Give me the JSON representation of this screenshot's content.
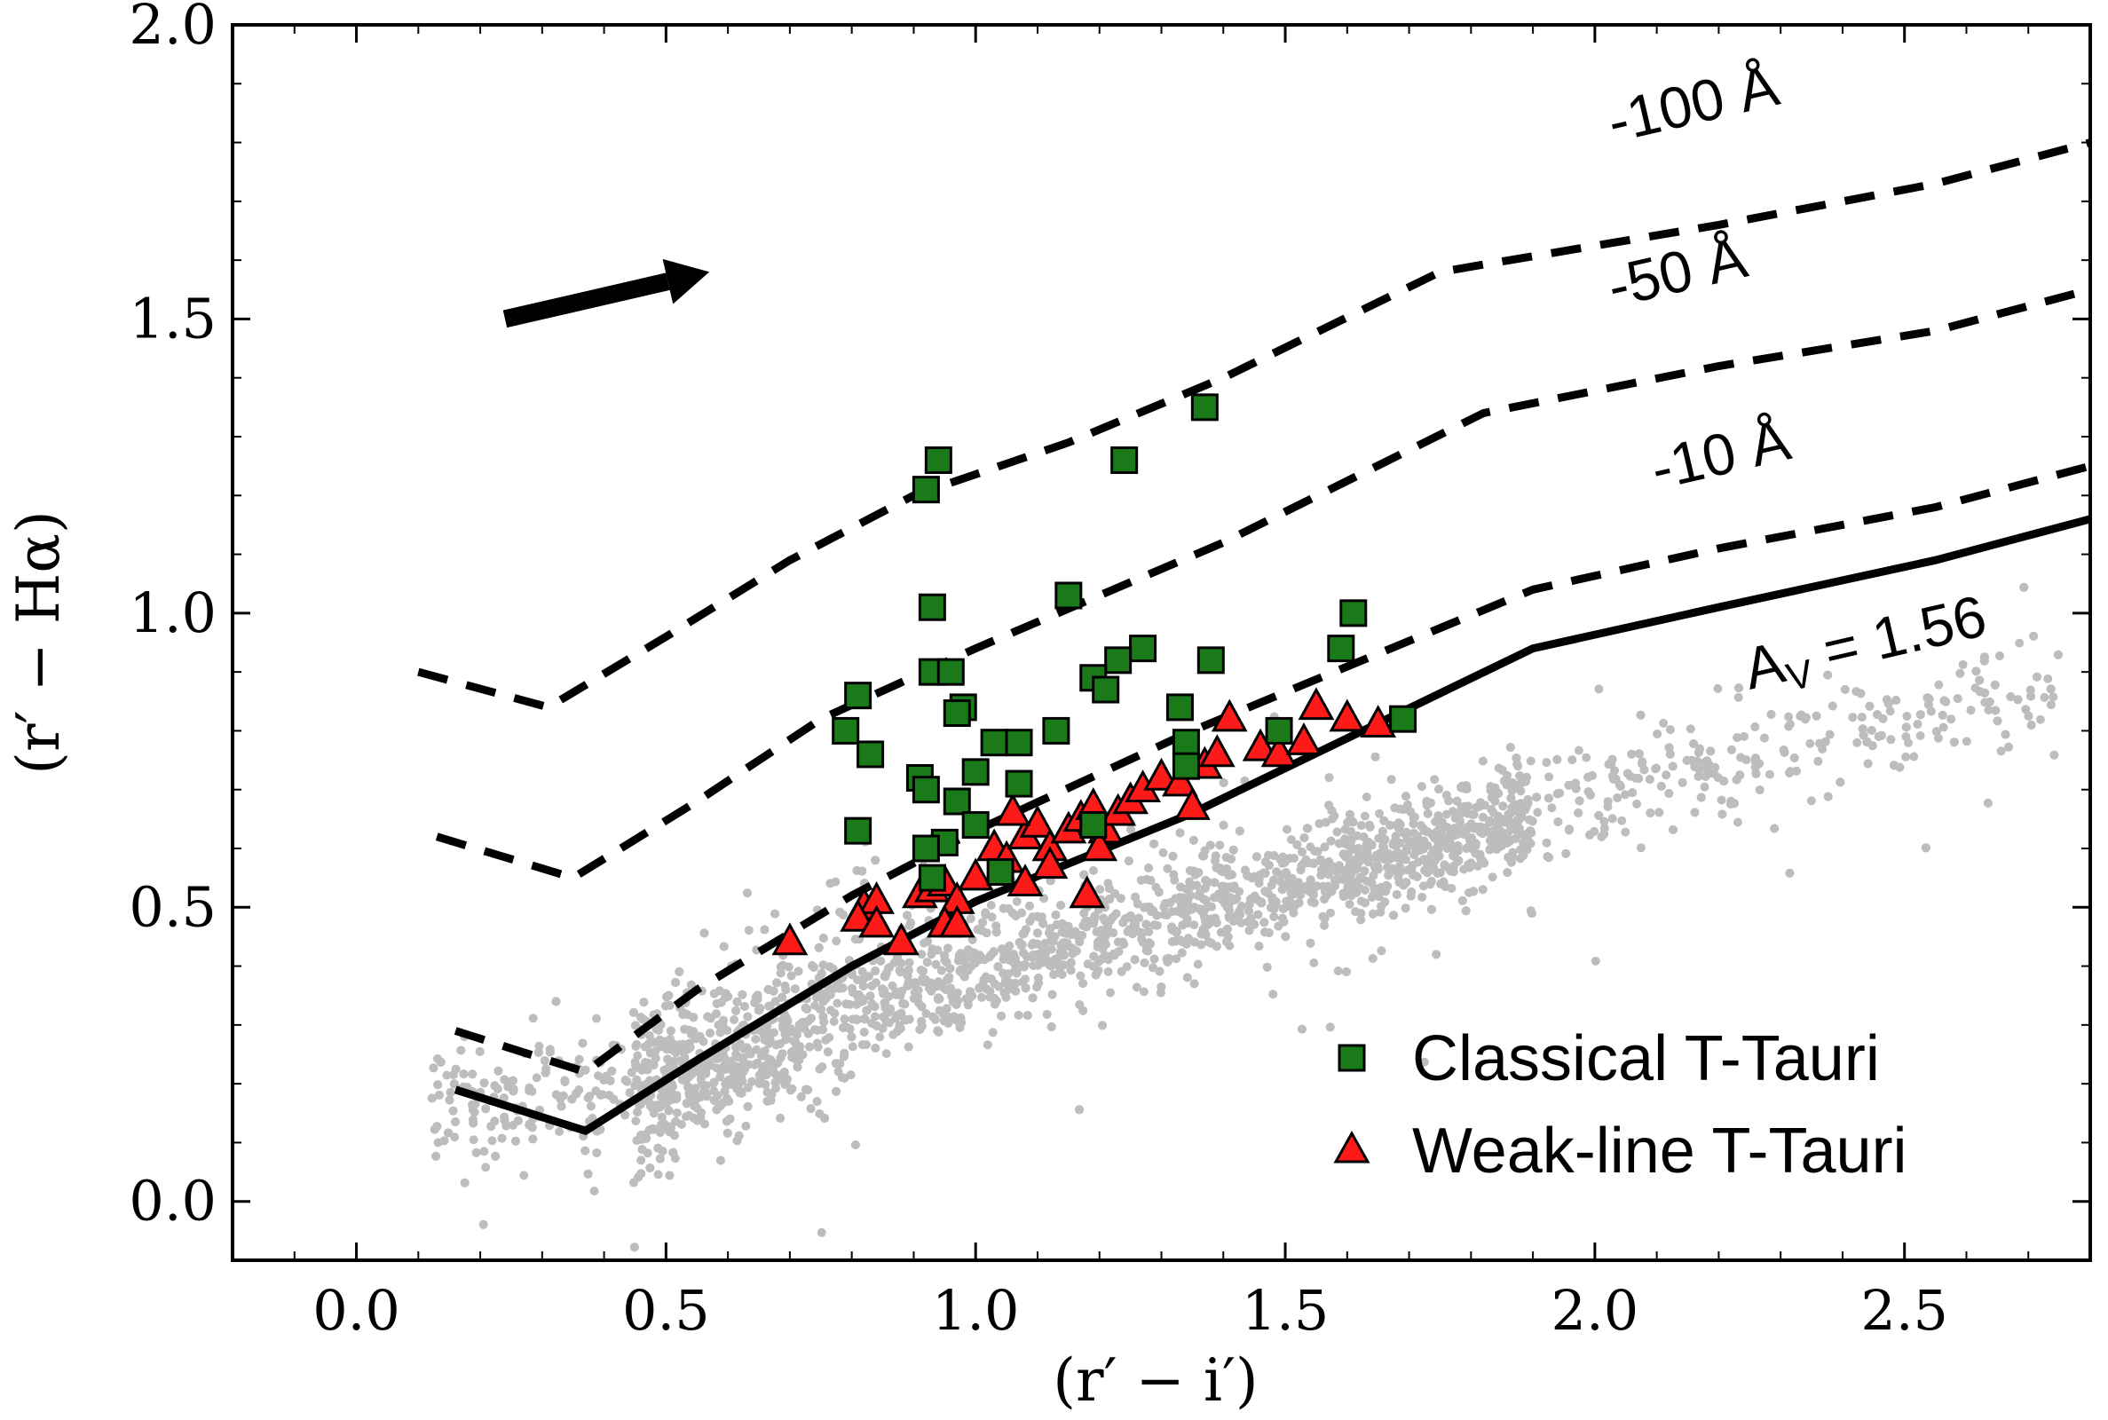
{
  "chart_data": {
    "type": "scatter",
    "title": "",
    "xlabel": "(r′ − i′)",
    "ylabel": "(r′ − Hα)",
    "xlim": [
      -0.2,
      2.8
    ],
    "ylim": [
      -0.1,
      2.0
    ],
    "xticks": [
      0.0,
      0.5,
      1.0,
      1.5,
      2.0,
      2.5
    ],
    "xtick_labels": [
      "0.0",
      "0.5",
      "1.0",
      "1.5",
      "2.0",
      "2.5"
    ],
    "yticks": [
      0.0,
      0.5,
      1.0,
      1.5,
      2.0
    ],
    "ytick_labels": [
      "0.0",
      "0.5",
      "1.0",
      "1.5",
      "2.0"
    ],
    "grid": false,
    "legend_position": "bottom-right",
    "colors": {
      "background_stars": "#bdbdbd",
      "classical": "#1a7a1a",
      "weak_line": "#ff1a1a",
      "line": "#000000"
    },
    "reddening_arrow": {
      "from": [
        0.24,
        1.5
      ],
      "to": [
        0.57,
        1.58
      ]
    },
    "lines": [
      {
        "name": "A_V = 1.56",
        "label": "A",
        "label_sub": "V",
        "label_tail": " = 1.56",
        "style": "solid",
        "x": [
          0.16,
          0.37,
          0.55,
          0.8,
          1.0,
          1.35,
          1.9,
          2.2,
          2.55,
          2.8
        ],
        "y": [
          0.19,
          0.12,
          0.24,
          0.4,
          0.51,
          0.66,
          0.94,
          1.01,
          1.09,
          1.16
        ]
      },
      {
        "name": "-10 Å",
        "label": "-10 Å",
        "style": "dashed",
        "x": [
          0.16,
          0.37,
          0.55,
          0.8,
          1.0,
          1.35,
          1.9,
          2.2,
          2.55,
          2.8
        ],
        "y": [
          0.29,
          0.22,
          0.36,
          0.52,
          0.63,
          0.8,
          1.04,
          1.11,
          1.18,
          1.25
        ]
      },
      {
        "name": "-50 Å",
        "label": "-50 Å",
        "style": "dashed",
        "x": [
          0.13,
          0.35,
          0.55,
          0.75,
          1.0,
          1.4,
          1.82,
          2.2,
          2.55,
          2.8
        ],
        "y": [
          0.62,
          0.55,
          0.68,
          0.82,
          0.94,
          1.12,
          1.34,
          1.42,
          1.48,
          1.55
        ]
      },
      {
        "name": "-100 Å",
        "label": "-100 Å",
        "style": "dashed",
        "x": [
          0.1,
          0.31,
          0.5,
          0.7,
          0.9,
          1.15,
          1.4,
          1.75,
          2.2,
          2.55,
          2.8
        ],
        "y": [
          0.9,
          0.84,
          0.96,
          1.09,
          1.2,
          1.29,
          1.4,
          1.58,
          1.66,
          1.73,
          1.8
        ]
      }
    ],
    "series": [
      {
        "name": "Classical T-Tauri",
        "marker": "square",
        "points": [
          [
            0.92,
            1.21
          ],
          [
            0.94,
            1.26
          ],
          [
            1.37,
            1.35
          ],
          [
            1.24,
            1.26
          ],
          [
            0.93,
            1.01
          ],
          [
            1.15,
            1.03
          ],
          [
            1.61,
            1.0
          ],
          [
            1.27,
            0.94
          ],
          [
            1.59,
            0.94
          ],
          [
            1.38,
            0.92
          ],
          [
            1.23,
            0.92
          ],
          [
            0.93,
            0.9
          ],
          [
            0.96,
            0.9
          ],
          [
            1.19,
            0.89
          ],
          [
            1.21,
            0.87
          ],
          [
            0.81,
            0.86
          ],
          [
            0.98,
            0.84
          ],
          [
            0.97,
            0.83
          ],
          [
            1.33,
            0.84
          ],
          [
            0.79,
            0.8
          ],
          [
            1.49,
            0.8
          ],
          [
            1.69,
            0.82
          ],
          [
            1.13,
            0.8
          ],
          [
            1.03,
            0.78
          ],
          [
            1.07,
            0.78
          ],
          [
            1.34,
            0.78
          ],
          [
            0.83,
            0.76
          ],
          [
            1.34,
            0.74
          ],
          [
            0.91,
            0.72
          ],
          [
            1.0,
            0.73
          ],
          [
            1.07,
            0.71
          ],
          [
            0.92,
            0.7
          ],
          [
            0.97,
            0.68
          ],
          [
            1.0,
            0.64
          ],
          [
            0.81,
            0.63
          ],
          [
            0.95,
            0.61
          ],
          [
            0.92,
            0.6
          ],
          [
            1.19,
            0.64
          ],
          [
            1.04,
            0.56
          ],
          [
            0.93,
            0.55
          ]
        ]
      },
      {
        "name": "Weak-line T-Tauri",
        "marker": "triangle",
        "points": [
          [
            0.7,
            0.44
          ],
          [
            0.82,
            0.5
          ],
          [
            0.84,
            0.51
          ],
          [
            0.81,
            0.48
          ],
          [
            0.84,
            0.47
          ],
          [
            0.88,
            0.44
          ],
          [
            0.91,
            0.52
          ],
          [
            0.93,
            0.53
          ],
          [
            0.95,
            0.54
          ],
          [
            0.97,
            0.51
          ],
          [
            0.95,
            0.47
          ],
          [
            1.0,
            0.55
          ],
          [
            1.03,
            0.6
          ],
          [
            1.05,
            0.58
          ],
          [
            1.08,
            0.62
          ],
          [
            1.1,
            0.64
          ],
          [
            1.12,
            0.6
          ],
          [
            1.15,
            0.63
          ],
          [
            1.17,
            0.65
          ],
          [
            1.19,
            0.67
          ],
          [
            1.21,
            0.63
          ],
          [
            1.23,
            0.66
          ],
          [
            1.25,
            0.68
          ],
          [
            1.27,
            0.7
          ],
          [
            1.3,
            0.72
          ],
          [
            1.33,
            0.71
          ],
          [
            1.35,
            0.67
          ],
          [
            1.37,
            0.74
          ],
          [
            1.39,
            0.76
          ],
          [
            1.41,
            0.82
          ],
          [
            1.46,
            0.77
          ],
          [
            1.49,
            0.76
          ],
          [
            1.53,
            0.78
          ],
          [
            1.55,
            0.84
          ],
          [
            1.6,
            0.82
          ],
          [
            1.65,
            0.81
          ],
          [
            1.06,
            0.66
          ],
          [
            1.12,
            0.57
          ],
          [
            1.18,
            0.52
          ],
          [
            0.97,
            0.47
          ],
          [
            1.08,
            0.54
          ],
          [
            1.2,
            0.6
          ]
        ]
      }
    ],
    "background_distribution": {
      "name": "field stars",
      "x_range": [
        0.12,
        2.75
      ],
      "main_locus_y": [
        [
          0.4,
          0.17
        ],
        [
          1.0,
          0.4
        ],
        [
          1.5,
          0.54
        ],
        [
          1.9,
          0.66
        ],
        [
          2.2,
          0.75
        ],
        [
          2.7,
          0.87
        ]
      ],
      "count": 5000
    }
  }
}
